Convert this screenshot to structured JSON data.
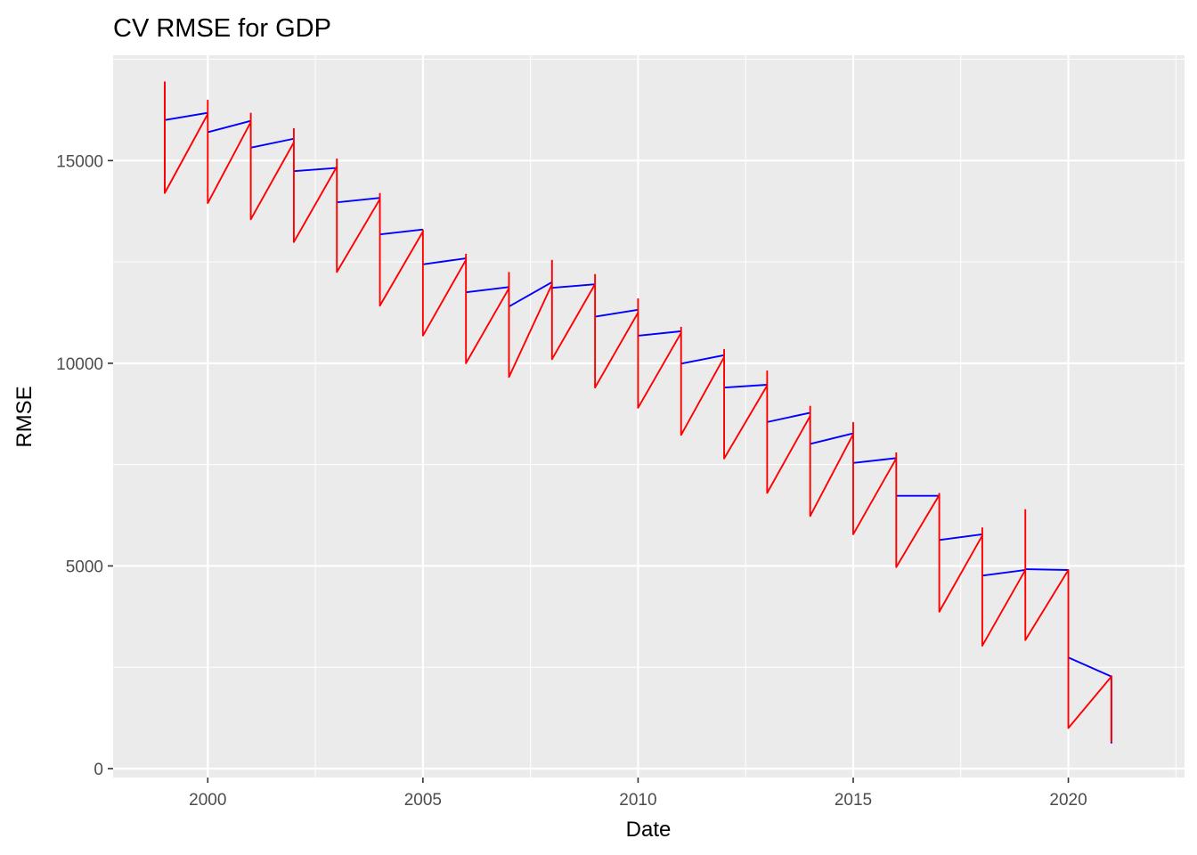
{
  "chart_data": {
    "type": "line",
    "title": "CV RMSE for GDP",
    "xlabel": "Date",
    "ylabel": "RMSE",
    "xlim": [
      1997.8,
      2022.7
    ],
    "ylim": [
      -220,
      17600
    ],
    "x_ticks": [
      2000,
      2005,
      2010,
      2015,
      2020
    ],
    "x_tick_labels": [
      "2000",
      "2005",
      "2010",
      "2015",
      "2020"
    ],
    "y_ticks": [
      0,
      5000,
      10000,
      15000
    ],
    "y_tick_labels": [
      "0",
      "5000",
      "10000",
      "15000"
    ],
    "grid": true,
    "legend": "none",
    "series": [
      {
        "color": "#0000ff",
        "segments": [
          [
            [
              1999,
              16000
            ],
            [
              2000,
              16180
            ]
          ],
          [
            [
              2000,
              15700
            ],
            [
              2001,
              15980
            ]
          ],
          [
            [
              2001,
              15320
            ],
            [
              2002,
              15540
            ]
          ],
          [
            [
              2002,
              14740
            ],
            [
              2003,
              14820
            ]
          ],
          [
            [
              2003,
              13970
            ],
            [
              2004,
              14080
            ]
          ],
          [
            [
              2004,
              13180
            ],
            [
              2005,
              13300
            ]
          ],
          [
            [
              2005,
              12440
            ],
            [
              2006,
              12590
            ]
          ],
          [
            [
              2006,
              11750
            ],
            [
              2007,
              11880
            ]
          ],
          [
            [
              2007,
              11400
            ],
            [
              2008,
              12000
            ]
          ],
          [
            [
              2008,
              11860
            ],
            [
              2009,
              11950
            ]
          ],
          [
            [
              2009,
              11150
            ],
            [
              2010,
              11320
            ]
          ],
          [
            [
              2010,
              10680
            ],
            [
              2011,
              10790
            ]
          ],
          [
            [
              2011,
              9990
            ],
            [
              2012,
              10200
            ]
          ],
          [
            [
              2012,
              9400
            ],
            [
              2013,
              9470
            ]
          ],
          [
            [
              2013,
              8550
            ],
            [
              2014,
              8780
            ]
          ],
          [
            [
              2014,
              8010
            ],
            [
              2015,
              8270
            ]
          ],
          [
            [
              2015,
              7540
            ],
            [
              2016,
              7660
            ]
          ],
          [
            [
              2016,
              6730
            ],
            [
              2017,
              6730
            ]
          ],
          [
            [
              2017,
              5640
            ],
            [
              2018,
              5780
            ]
          ],
          [
            [
              2018,
              4760
            ],
            [
              2019,
              4900
            ]
          ],
          [
            [
              2019,
              4920
            ],
            [
              2020,
              4900
            ]
          ],
          [
            [
              2020,
              2740
            ],
            [
              2021,
              2270
            ]
          ],
          [
            [
              2021,
              2270
            ],
            [
              2021,
              620
            ]
          ]
        ]
      },
      {
        "color": "#ff0000",
        "segments": [
          [
            [
              1999,
              16950
            ],
            [
              1999,
              14200
            ],
            [
              2000,
              16150
            ],
            [
              2000,
              13950
            ],
            [
              2001,
              15950
            ],
            [
              2001,
              13550
            ],
            [
              2002,
              15450
            ],
            [
              2002,
              12990
            ],
            [
              2003,
              14850
            ],
            [
              2003,
              12250
            ],
            [
              2004,
              14050
            ],
            [
              2004,
              11420
            ],
            [
              2005,
              13250
            ],
            [
              2005,
              10680
            ],
            [
              2006,
              12550
            ],
            [
              2006,
              10000
            ],
            [
              2007,
              11850
            ],
            [
              2007,
              9660
            ],
            [
              2008,
              11950
            ],
            [
              2008,
              10100
            ],
            [
              2009,
              11950
            ],
            [
              2009,
              9400
            ],
            [
              2010,
              11250
            ],
            [
              2010,
              8900
            ],
            [
              2011,
              10750
            ],
            [
              2011,
              8230
            ],
            [
              2012,
              10150
            ],
            [
              2012,
              7650
            ],
            [
              2013,
              9450
            ],
            [
              2013,
              6800
            ],
            [
              2014,
              8700
            ],
            [
              2014,
              6230
            ],
            [
              2015,
              8250
            ],
            [
              2015,
              5780
            ],
            [
              2016,
              7650
            ],
            [
              2016,
              4970
            ],
            [
              2017,
              6750
            ],
            [
              2017,
              3870
            ],
            [
              2018,
              5750
            ],
            [
              2018,
              3030
            ],
            [
              2019,
              4900
            ],
            [
              2019,
              3170
            ],
            [
              2020,
              4900
            ],
            [
              2020,
              1000
            ],
            [
              2021,
              2270
            ],
            [
              2021,
              650
            ]
          ],
          [
            [
              1999,
              16950
            ],
            [
              1999,
              14200
            ]
          ],
          [
            [
              2000,
              16500
            ],
            [
              2000,
              16150
            ]
          ],
          [
            [
              2001,
              16180
            ],
            [
              2001,
              15950
            ]
          ],
          [
            [
              2002,
              15800
            ],
            [
              2002,
              15450
            ]
          ],
          [
            [
              2003,
              15050
            ],
            [
              2003,
              14850
            ]
          ],
          [
            [
              2004,
              14200
            ],
            [
              2004,
              14050
            ]
          ],
          [
            [
              2005,
              13300
            ],
            [
              2005,
              13250
            ]
          ],
          [
            [
              2006,
              12700
            ],
            [
              2006,
              12550
            ]
          ],
          [
            [
              2007,
              12250
            ],
            [
              2007,
              11850
            ]
          ],
          [
            [
              2008,
              12550
            ],
            [
              2008,
              11950
            ]
          ],
          [
            [
              2009,
              12200
            ],
            [
              2009,
              11950
            ]
          ],
          [
            [
              2010,
              11600
            ],
            [
              2010,
              11250
            ]
          ],
          [
            [
              2011,
              10900
            ],
            [
              2011,
              10750
            ]
          ],
          [
            [
              2012,
              10350
            ],
            [
              2012,
              10150
            ]
          ],
          [
            [
              2013,
              9820
            ],
            [
              2013,
              9450
            ]
          ],
          [
            [
              2014,
              8950
            ],
            [
              2014,
              8700
            ]
          ],
          [
            [
              2015,
              8550
            ],
            [
              2015,
              8250
            ]
          ],
          [
            [
              2016,
              7800
            ],
            [
              2016,
              7650
            ]
          ],
          [
            [
              2017,
              6800
            ],
            [
              2017,
              6750
            ]
          ],
          [
            [
              2018,
              5950
            ],
            [
              2018,
              5750
            ]
          ],
          [
            [
              2019,
              6400
            ],
            [
              2019,
              4900
            ]
          ],
          [
            [
              2020,
              4900
            ],
            [
              2020,
              4900
            ]
          ],
          [
            [
              2021,
              2300
            ],
            [
              2021,
              2270
            ]
          ]
        ]
      }
    ]
  }
}
